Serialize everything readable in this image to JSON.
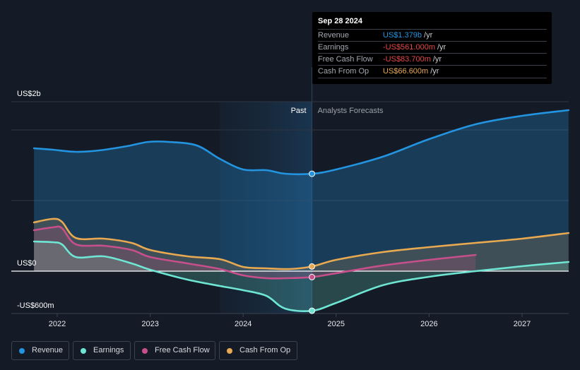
{
  "tooltip": {
    "date": "Sep 28 2024",
    "rows": [
      {
        "label": "Revenue",
        "value": "US$1.379b",
        "unit": "/yr",
        "color": "#2394df"
      },
      {
        "label": "Earnings",
        "value": "-US$561.000m",
        "unit": "/yr",
        "color": "#e64747"
      },
      {
        "label": "Free Cash Flow",
        "value": "-US$83.700m",
        "unit": "/yr",
        "color": "#e64747"
      },
      {
        "label": "Cash From Op",
        "value": "US$66.600m",
        "unit": "/yr",
        "color": "#e8a951"
      }
    ]
  },
  "legend": [
    {
      "label": "Revenue",
      "color": "#2394df"
    },
    {
      "label": "Earnings",
      "color": "#6ee6d3"
    },
    {
      "label": "Free Cash Flow",
      "color": "#c74f8b"
    },
    {
      "label": "Cash From Op",
      "color": "#e8a951"
    }
  ],
  "chart_data": {
    "type": "line",
    "title": "",
    "xlabel": "",
    "ylabel": "",
    "y_unit": "US$ millions",
    "y_axis_labels": [
      {
        "text": "US$2b",
        "value": 2400
      },
      {
        "text": "US$0",
        "value": 0
      },
      {
        "text": "-US$600m",
        "value": -600
      }
    ],
    "ylim": [
      -600,
      2400
    ],
    "xlim": [
      2021.7,
      2027.5
    ],
    "x_ticks": [
      2022,
      2023,
      2024,
      2025,
      2026,
      2027
    ],
    "grid": true,
    "regions": {
      "past_label": "Past",
      "forecast_label": "Analysts Forecasts",
      "highlight_start": 2023.75,
      "divider": 2024.74
    },
    "marker_x": 2024.74,
    "series": [
      {
        "name": "Revenue",
        "color": "#2394df",
        "points": [
          [
            2021.75,
            1740
          ],
          [
            2021.95,
            1720
          ],
          [
            2022.2,
            1690
          ],
          [
            2022.45,
            1710
          ],
          [
            2022.75,
            1770
          ],
          [
            2022.98,
            1830
          ],
          [
            2023.2,
            1830
          ],
          [
            2023.5,
            1780
          ],
          [
            2023.75,
            1590
          ],
          [
            2024.0,
            1440
          ],
          [
            2024.25,
            1430
          ],
          [
            2024.45,
            1380
          ],
          [
            2024.74,
            1379
          ],
          [
            2025.0,
            1440
          ],
          [
            2025.5,
            1620
          ],
          [
            2026.0,
            1870
          ],
          [
            2026.5,
            2080
          ],
          [
            2027.0,
            2200
          ],
          [
            2027.5,
            2280
          ]
        ]
      },
      {
        "name": "Earnings",
        "color": "#6ee6d3",
        "points": [
          [
            2021.75,
            420
          ],
          [
            2021.95,
            410
          ],
          [
            2022.05,
            380
          ],
          [
            2022.2,
            200
          ],
          [
            2022.5,
            210
          ],
          [
            2022.8,
            110
          ],
          [
            2023.0,
            20
          ],
          [
            2023.4,
            -120
          ],
          [
            2023.75,
            -210
          ],
          [
            2024.0,
            -270
          ],
          [
            2024.25,
            -350
          ],
          [
            2024.45,
            -530
          ],
          [
            2024.74,
            -561
          ],
          [
            2025.0,
            -450
          ],
          [
            2025.5,
            -200
          ],
          [
            2026.0,
            -80
          ],
          [
            2026.5,
            0
          ],
          [
            2027.0,
            70
          ],
          [
            2027.5,
            130
          ]
        ]
      },
      {
        "name": "Free Cash Flow",
        "color": "#c74f8b",
        "points": [
          [
            2021.75,
            580
          ],
          [
            2021.95,
            620
          ],
          [
            2022.05,
            610
          ],
          [
            2022.2,
            380
          ],
          [
            2022.5,
            360
          ],
          [
            2022.8,
            300
          ],
          [
            2023.0,
            200
          ],
          [
            2023.4,
            110
          ],
          [
            2023.75,
            30
          ],
          [
            2024.0,
            -60
          ],
          [
            2024.25,
            -100
          ],
          [
            2024.45,
            -100
          ],
          [
            2024.74,
            -84
          ],
          [
            2025.0,
            -30
          ],
          [
            2025.5,
            80
          ],
          [
            2026.0,
            160
          ],
          [
            2026.5,
            230
          ]
        ]
      },
      {
        "name": "Cash From Op",
        "color": "#e8a951",
        "points": [
          [
            2021.75,
            690
          ],
          [
            2021.95,
            740
          ],
          [
            2022.05,
            700
          ],
          [
            2022.2,
            470
          ],
          [
            2022.5,
            460
          ],
          [
            2022.8,
            400
          ],
          [
            2023.0,
            300
          ],
          [
            2023.4,
            210
          ],
          [
            2023.75,
            170
          ],
          [
            2024.0,
            60
          ],
          [
            2024.25,
            40
          ],
          [
            2024.5,
            30
          ],
          [
            2024.74,
            66
          ],
          [
            2025.0,
            160
          ],
          [
            2025.5,
            270
          ],
          [
            2026.0,
            340
          ],
          [
            2026.5,
            400
          ],
          [
            2027.0,
            460
          ],
          [
            2027.5,
            540
          ]
        ]
      }
    ]
  }
}
